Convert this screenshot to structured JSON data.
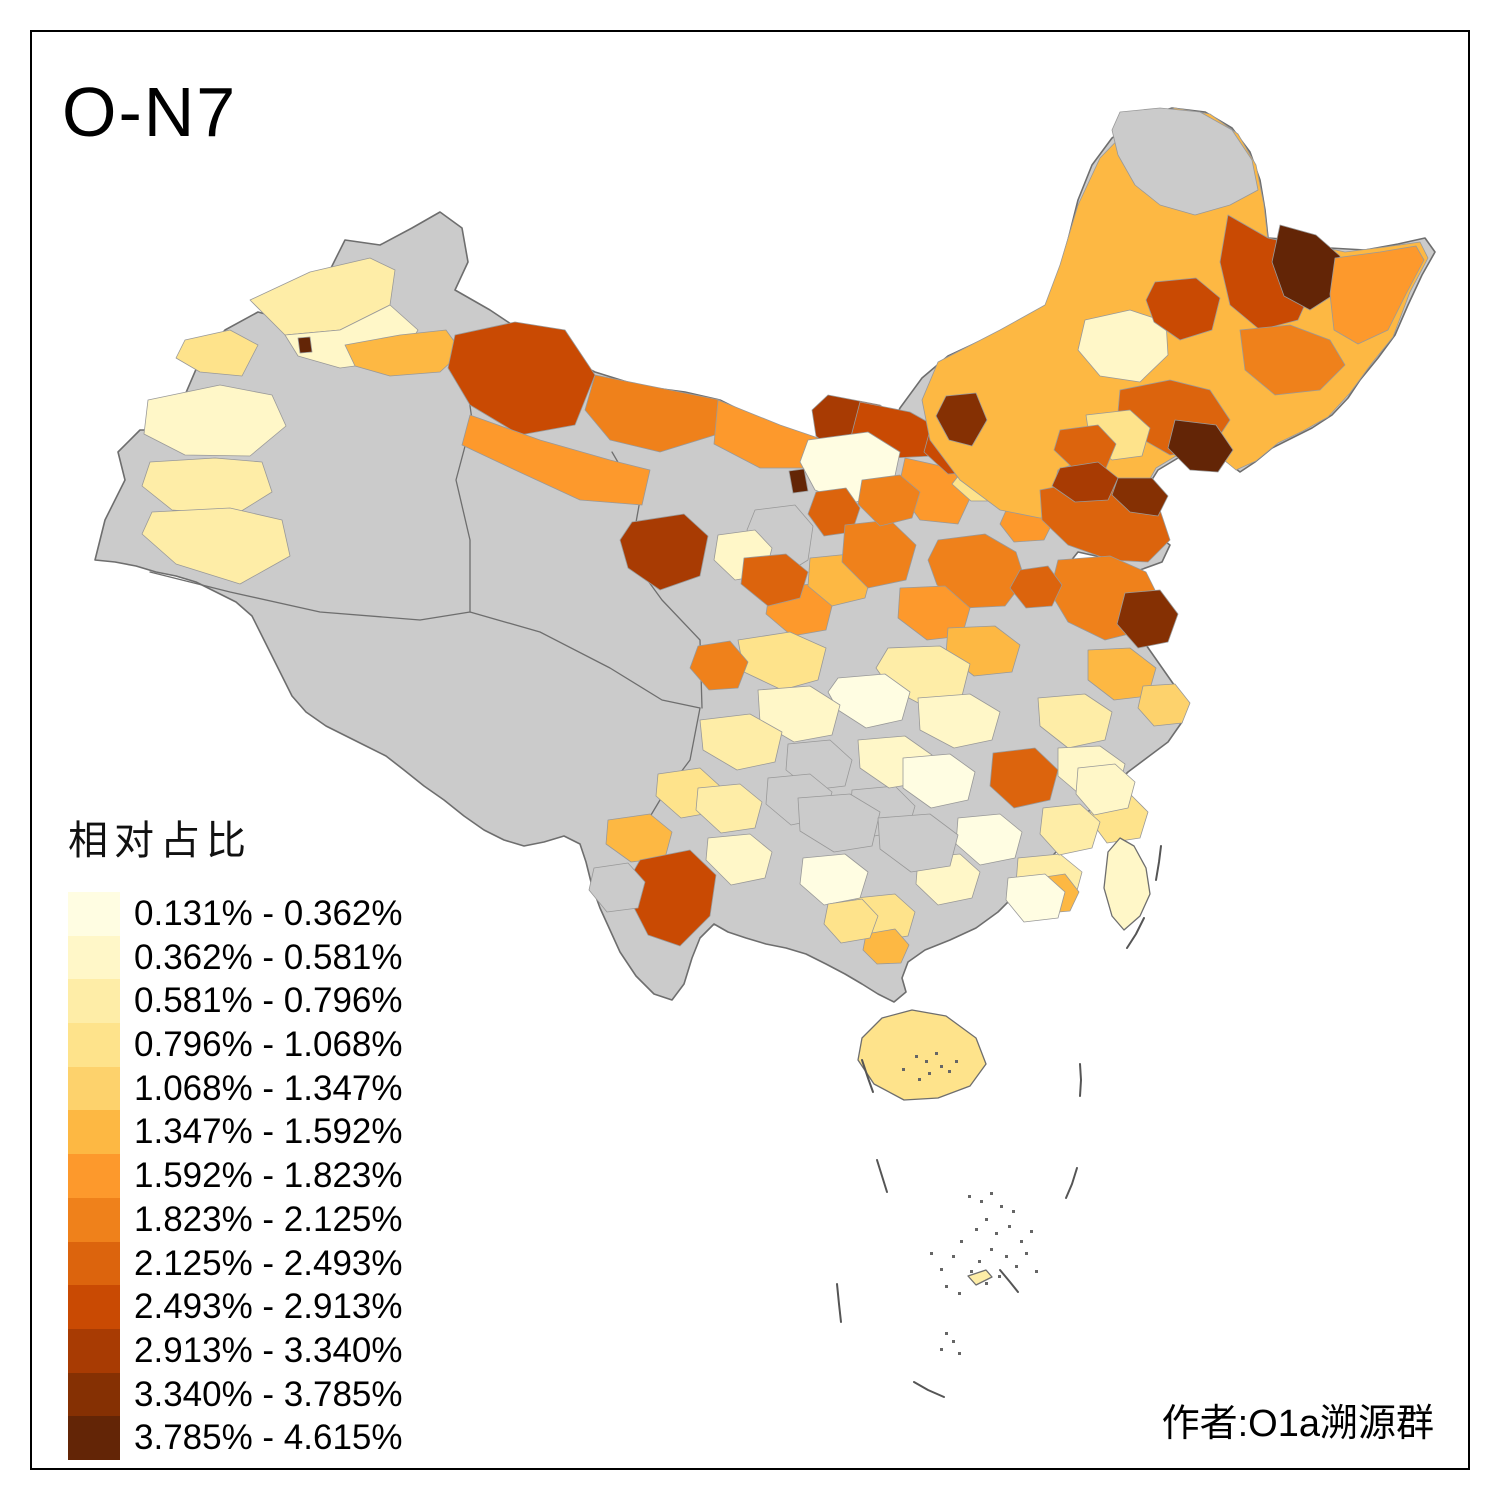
{
  "title": "O-N7",
  "attribution": "作者:O1a溯源群",
  "legend": {
    "title": "相对占比",
    "no_data_color": "#CBCBCB",
    "classes": [
      {
        "label": "0.131% - 0.362%",
        "color": "#FFFDE2"
      },
      {
        "label": "0.362% - 0.581%",
        "color": "#FFF7C8"
      },
      {
        "label": "0.581% - 0.796%",
        "color": "#FEEDA7"
      },
      {
        "label": "0.796% - 1.068%",
        "color": "#FEE38B"
      },
      {
        "label": "1.068% - 1.347%",
        "color": "#FDD26C"
      },
      {
        "label": "1.347% - 1.592%",
        "color": "#FDB843"
      },
      {
        "label": "1.592% - 1.823%",
        "color": "#FD992C"
      },
      {
        "label": "1.823% - 2.125%",
        "color": "#EF811B"
      },
      {
        "label": "2.125% - 2.493%",
        "color": "#DC640D"
      },
      {
        "label": "2.493% - 2.913%",
        "color": "#C94A03"
      },
      {
        "label": "2.913% - 3.340%",
        "color": "#A83B03"
      },
      {
        "label": "3.340% - 3.785%",
        "color": "#853003"
      },
      {
        "label": "3.785% - 4.615%",
        "color": "#632506"
      }
    ]
  },
  "map": {
    "outline_color": "#6E6E6E",
    "prefecture_border_color": "#999999",
    "dash_color": "#555555",
    "mainland": "95,560 105,520 125,480 118,452 140,430 170,430 200,360 225,330 258,312 280,318 300,285 330,270 345,240 380,245 412,228 440,212 462,228 468,262 455,290 490,310 520,330 555,352 595,372 640,386 685,392 720,400 760,420 800,438 838,448 868,452 885,438 900,408 922,378 948,356 978,342 1005,332 1028,322 1048,305 1058,275 1068,240 1078,200 1092,165 1112,138 1140,118 1172,108 1205,112 1232,128 1250,152 1260,180 1265,210 1268,238 1298,240 1330,248 1365,250 1398,244 1425,238 1435,252 1422,275 1408,305 1395,335 1378,358 1360,380 1348,398 1332,415 1312,428 1292,438 1272,448 1255,462 1240,472 1222,458 1200,450 1178,458 1158,470 1148,486 1134,500 1116,488 1096,474 1074,466 1056,472 1050,488 1062,502 1084,512 1108,522 1130,526 1152,532 1170,545 1162,562 1140,570 1118,565 1096,556 1078,552 1070,562 1082,578 1102,592 1120,606 1134,622 1144,642 1158,662 1172,682 1186,702 1182,722 1168,742 1148,757 1128,772 1108,792 1088,812 1072,832 1056,852 1038,872 1018,892 998,912 976,928 950,940 925,950 908,962 902,978 906,992 894,1002 878,994 862,984 845,974 826,964 806,954 786,948 766,944 746,938 728,932 714,924 700,938 692,958 684,984 672,1000 654,994 636,976 620,952 610,930 600,908 592,886 586,862 580,844 564,836 544,842 524,846 504,840 484,830 464,816 444,800 424,786 404,770 386,756 366,746 346,736 326,726 306,712 292,696 282,676 272,656 262,636 252,616 236,602 216,592 196,582 176,576 156,572 136,566 115,562",
    "islands": [
      {
        "name": "hainan",
        "c": 4,
        "p": "862,1038 882,1018 912,1010 946,1016 976,1038 986,1064 970,1086 938,1098 904,1100 874,1084 858,1060"
      },
      {
        "name": "taiwan",
        "c": 2,
        "p": "1108,852 1120,838 1134,846 1146,868 1150,894 1140,916 1124,930 1112,916 1104,888"
      },
      {
        "name": "sansha",
        "c": 3,
        "p": "968,1276 986,1270 992,1277 976,1285"
      }
    ],
    "province_borders": [
      "150,572 230,592 320,612 420,620 470,612",
      "470,612 540,632 610,668 662,700 700,708",
      "462,348 472,420 456,480 470,540 470,612",
      "700,708 690,760 660,800 642,830",
      "612,452 640,500 630,556 662,600 700,640 702,708"
    ],
    "patches": [
      {
        "c": 3,
        "p": "250,300 310,272 370,258 395,270 390,305 340,330 285,335"
      },
      {
        "c": 4,
        "p": "185,340 230,330 258,345 242,376 200,372 176,358"
      },
      {
        "c": 2,
        "p": "148,400 220,385 272,395 286,426 250,456 185,455 144,434"
      },
      {
        "c": 2,
        "p": "285,335 340,330 390,305 418,330 400,360 340,368 298,356"
      },
      {
        "c": 6,
        "p": "345,345 400,335 446,330 462,352 440,372 390,376 355,366"
      },
      {
        "c": 13,
        "p": "298,338 310,337 312,352 300,353"
      },
      {
        "c": 3,
        "p": "150,462 215,458 262,462 272,492 235,515 172,510 142,486"
      },
      {
        "c": 3,
        "p": "152,512 230,508 282,520 290,556 240,584 176,564 142,534"
      },
      {
        "c": 10,
        "p": "455,335 515,322 565,330 595,375 575,425 520,435 470,405 448,368"
      },
      {
        "c": 8,
        "p": "595,375 660,388 720,400 715,435 660,452 610,440 585,410"
      },
      {
        "c": 7,
        "p": "470,415 540,440 610,460 650,470 642,505 580,500 515,470 462,445"
      },
      {
        "c": 7,
        "p": "718,400 780,425 830,442 822,468 760,468 714,444"
      },
      {
        "c": 11,
        "p": "828,395 880,405 906,424 890,452 845,460 816,436 812,410"
      },
      {
        "c": 10,
        "p": "860,402 910,412 942,430 932,456 892,458 848,448"
      },
      {
        "c": 1,
        "p": "808,440 868,432 900,452 892,490 850,504 815,490 800,462"
      },
      {
        "c": 13,
        "p": "789,471 804,469 808,491 793,493"
      },
      {
        "c": 0,
        "p": "755,510 795,505 813,526 808,560 782,576 757,556 747,530"
      },
      {
        "c": 11,
        "p": "632,522 684,514 708,536 700,576 660,590 628,568 620,540"
      },
      {
        "c": 9,
        "p": "816,492 846,488 860,508 852,532 824,536 808,514"
      },
      {
        "c": 2,
        "p": "718,535 755,530 772,548 765,575 735,580 714,560"
      },
      {
        "c": 7,
        "p": "770,588 812,584 833,602 826,630 792,636 766,614"
      },
      {
        "c": 9,
        "p": "744,558 786,554 808,572 800,598 768,606 741,584"
      },
      {
        "c": 6,
        "p": "810,558 850,554 872,572 865,598 832,606 808,586"
      },
      {
        "c": 8,
        "p": "845,525 890,520 916,545 906,580 868,588 842,562"
      },
      {
        "c": 7,
        "p": "905,458 950,468 972,494 958,524 920,520 898,490"
      },
      {
        "c": 8,
        "p": "862,480 900,475 920,492 912,518 880,526 858,504"
      },
      {
        "c": 10,
        "p": "930,430 975,428 992,448 982,472 948,474 924,452"
      },
      {
        "c": 4,
        "p": "963,470 1000,465 1013,483 1002,501 971,501 952,484"
      },
      {
        "c": 7,
        "p": "998,455 1032,450 1050,470 1038,494 1006,494 988,476"
      },
      {
        "c": 11,
        "p": "1046,496 1082,490 1099,510 1088,531 1057,533 1041,515"
      },
      {
        "c": 7,
        "p": "1008,506 1040,502 1054,520 1044,540 1014,542 1000,524"
      },
      {
        "c": 6,
        "p": "938,362 1000,330 1045,305 1060,265 1078,205 1100,158 1135,122 1175,108 1210,114 1238,134 1256,165 1264,205 1268,240 1305,243 1345,252 1385,247 1420,242 1428,258 1410,292 1393,337 1372,363 1350,393 1328,417 1303,431 1278,443 1256,461 1236,470 1218,455 1196,448 1176,456 1156,468 1146,486 1130,498 1112,486 1094,472 1074,464 1058,470 1054,486 1068,502 1092,513 1040,518 1000,510 960,480 930,440 922,400"
      },
      {
        "c": 0,
        "p": "1120,112 1160,108 1200,112 1232,130 1252,160 1258,190 1230,205 1195,215 1160,205 1135,185 1118,155 1112,130"
      },
      {
        "c": 10,
        "p": "1228,215 1268,238 1300,245 1316,280 1298,320 1260,330 1230,305 1220,262"
      },
      {
        "c": 13,
        "p": "1280,225 1316,235 1340,256 1338,292 1310,310 1284,296 1272,262"
      },
      {
        "c": 2,
        "p": "1085,320 1130,310 1166,322 1168,355 1140,382 1100,376 1078,350"
      },
      {
        "c": 10,
        "p": "1155,282 1196,278 1220,298 1212,330 1180,340 1154,322 1146,300"
      },
      {
        "c": 8,
        "p": "1240,330 1290,325 1330,340 1345,365 1320,390 1275,395 1245,370"
      },
      {
        "c": 7,
        "p": "1335,258 1380,252 1416,246 1424,260 1406,294 1388,330 1358,344 1334,330 1330,294"
      },
      {
        "c": 9,
        "p": "1120,390 1170,380 1210,390 1230,420 1210,450 1170,455 1135,435 1118,412"
      },
      {
        "c": 4,
        "p": "1086,415 1130,410 1150,428 1142,456 1112,460 1090,442"
      },
      {
        "c": 13,
        "p": "1175,420 1216,425 1233,450 1218,472 1190,470 1168,448"
      },
      {
        "c": 12,
        "p": "946,396 976,393 987,420 972,446 949,440 936,416"
      },
      {
        "c": 9,
        "p": "1060,430 1098,425 1116,444 1106,468 1075,470 1054,450"
      },
      {
        "c": 9,
        "p": "1040,490 1090,480 1130,492 1160,510 1170,540 1148,562 1110,560 1068,545 1042,520"
      },
      {
        "c": 11,
        "p": "1060,468 1098,462 1118,478 1108,500 1075,502 1052,486"
      },
      {
        "c": 12,
        "p": "1118,478 1152,478 1168,496 1158,516 1130,512 1112,495"
      },
      {
        "c": 8,
        "p": "1058,560 1110,556 1146,572 1160,600 1145,630 1105,640 1068,622 1050,592"
      },
      {
        "c": 12,
        "p": "1125,593 1160,590 1178,614 1168,642 1138,648 1117,624"
      },
      {
        "c": 6,
        "p": "1088,650 1130,648 1156,668 1148,696 1114,700 1088,680"
      },
      {
        "c": 5,
        "p": "1143,686 1175,684 1190,703 1182,723 1154,726 1138,708"
      },
      {
        "c": 8,
        "p": "938,540 985,534 1016,552 1025,580 1005,606 964,608 937,585 928,560"
      },
      {
        "c": 7,
        "p": "900,588 945,586 970,608 962,636 927,640 898,618"
      },
      {
        "c": 6,
        "p": "948,628 995,626 1020,645 1012,672 974,676 946,654"
      },
      {
        "c": 9,
        "p": "1020,570 1048,566 1062,585 1052,606 1026,608 1010,588"
      },
      {
        "c": 3,
        "p": "888,648 940,646 970,664 962,696 924,706 890,688 876,668"
      },
      {
        "c": 1,
        "p": "838,678 885,674 910,692 902,720 866,728 838,710 828,692"
      },
      {
        "c": 2,
        "p": "918,698 970,694 1000,712 992,740 954,748 920,730"
      },
      {
        "c": 4,
        "p": "738,640 790,632 826,648 818,680 782,690 744,672"
      },
      {
        "c": 8,
        "p": "698,646 730,641 748,662 738,688 709,690 690,668"
      },
      {
        "c": 2,
        "p": "758,690 810,686 840,705 832,735 794,742 760,722"
      },
      {
        "c": 3,
        "p": "700,720 750,714 782,732 775,762 737,770 703,750"
      },
      {
        "c": 0,
        "p": "788,744 830,740 852,760 845,786 811,790 786,770"
      },
      {
        "c": 0,
        "p": "852,790 895,786 915,806 908,830 874,836 850,815"
      },
      {
        "c": 2,
        "p": "858,740 905,736 932,755 925,782 889,788 860,768"
      },
      {
        "c": 1,
        "p": "903,758 950,754 975,772 968,800 931,808 903,788"
      },
      {
        "c": 9,
        "p": "993,753 1035,748 1058,770 1050,800 1014,808 990,786"
      },
      {
        "c": 3,
        "p": "1038,698 1085,694 1112,712 1105,740 1068,748 1040,726"
      },
      {
        "c": 2,
        "p": "1058,748 1100,746 1125,764 1118,792 1084,798 1058,776"
      },
      {
        "c": 4,
        "p": "1092,798 1130,794 1148,812 1140,838 1107,843 1090,820"
      },
      {
        "c": 1,
        "p": "958,818 1000,814 1022,832 1015,858 980,865 956,844"
      },
      {
        "c": 3,
        "p": "1018,858 1060,854 1082,872 1075,898 1041,905 1016,884"
      },
      {
        "c": 6,
        "p": "1038,878 1065,874 1079,892 1070,911 1047,913 1034,897"
      },
      {
        "c": 2,
        "p": "918,858 960,854 980,872 972,898 938,905 916,884"
      },
      {
        "c": 4,
        "p": "856,898 895,894 915,912 908,936 877,941 854,919"
      },
      {
        "c": 6,
        "p": "866,934 895,929 909,945 901,963 877,964 863,950"
      },
      {
        "c": 0,
        "p": "768,778 810,774 832,792 825,818 791,825 766,804"
      },
      {
        "c": 0,
        "p": "798,798 850,794 880,812 872,846 834,852 800,831"
      },
      {
        "c": 0,
        "p": "878,818 930,814 958,835 950,866 911,872 880,849"
      },
      {
        "c": 1,
        "p": "803,858 845,854 868,872 860,898 824,905 800,884"
      },
      {
        "c": 4,
        "p": "828,904 862,899 878,916 870,938 841,943 824,924"
      },
      {
        "c": 6,
        "p": "608,820 650,814 672,832 665,858 631,862 606,844"
      },
      {
        "c": 4,
        "p": "658,774 700,768 722,788 715,812 681,818 656,796"
      },
      {
        "c": 3,
        "p": "698,788 740,784 762,802 755,828 721,833 696,810"
      },
      {
        "c": 2,
        "p": "708,838 750,834 772,852 765,878 731,885 706,860"
      },
      {
        "c": 10,
        "p": "640,860 690,850 716,875 710,916 680,946 648,935 629,898 632,874"
      },
      {
        "c": 0,
        "p": "594,868 628,863 645,882 638,908 607,912 589,890"
      },
      {
        "c": 2,
        "p": "1078,768 1115,764 1135,782 1128,808 1094,815 1076,794"
      },
      {
        "c": 3,
        "p": "1043,808 1080,804 1100,822 1092,848 1059,855 1040,834"
      },
      {
        "c": 1,
        "p": "1008,878 1045,874 1065,892 1058,918 1024,922 1006,900"
      }
    ],
    "dash_lines": [
      "1161,846 1159,862 1156,880",
      "1144,918 1136,934 1127,948",
      "862,1060 868,1078 873,1092",
      "1080,1064 1081,1080 1080,1096",
      "877,1160 882,1176 887,1192",
      "1077,1168 1072,1184 1066,1198",
      "1000,1270 1010,1282 1018,1292",
      "837,1284 839,1304 841,1322",
      "914,1382 928,1390 944,1397"
    ],
    "island_speckles": [
      [
        915,
        1055
      ],
      [
        925,
        1060
      ],
      [
        935,
        1052
      ],
      [
        940,
        1065
      ],
      [
        928,
        1072
      ],
      [
        948,
        1070
      ],
      [
        955,
        1060
      ],
      [
        902,
        1068
      ],
      [
        918,
        1078
      ],
      [
        968,
        1195
      ],
      [
        980,
        1200
      ],
      [
        990,
        1192
      ],
      [
        1000,
        1205
      ],
      [
        1012,
        1210
      ],
      [
        985,
        1218
      ],
      [
        975,
        1228
      ],
      [
        995,
        1232
      ],
      [
        1008,
        1225
      ],
      [
        1020,
        1240
      ],
      [
        990,
        1248
      ],
      [
        1005,
        1255
      ],
      [
        978,
        1260
      ],
      [
        1015,
        1265
      ],
      [
        998,
        1275
      ],
      [
        985,
        1282
      ],
      [
        970,
        1270
      ],
      [
        1025,
        1252
      ],
      [
        1030,
        1230
      ],
      [
        960,
        1240
      ],
      [
        952,
        1255
      ],
      [
        940,
        1268
      ],
      [
        930,
        1252
      ],
      [
        945,
        1285
      ],
      [
        958,
        1292
      ],
      [
        1035,
        1270
      ],
      [
        945,
        1332
      ],
      [
        952,
        1340
      ],
      [
        940,
        1348
      ],
      [
        958,
        1352
      ]
    ]
  }
}
